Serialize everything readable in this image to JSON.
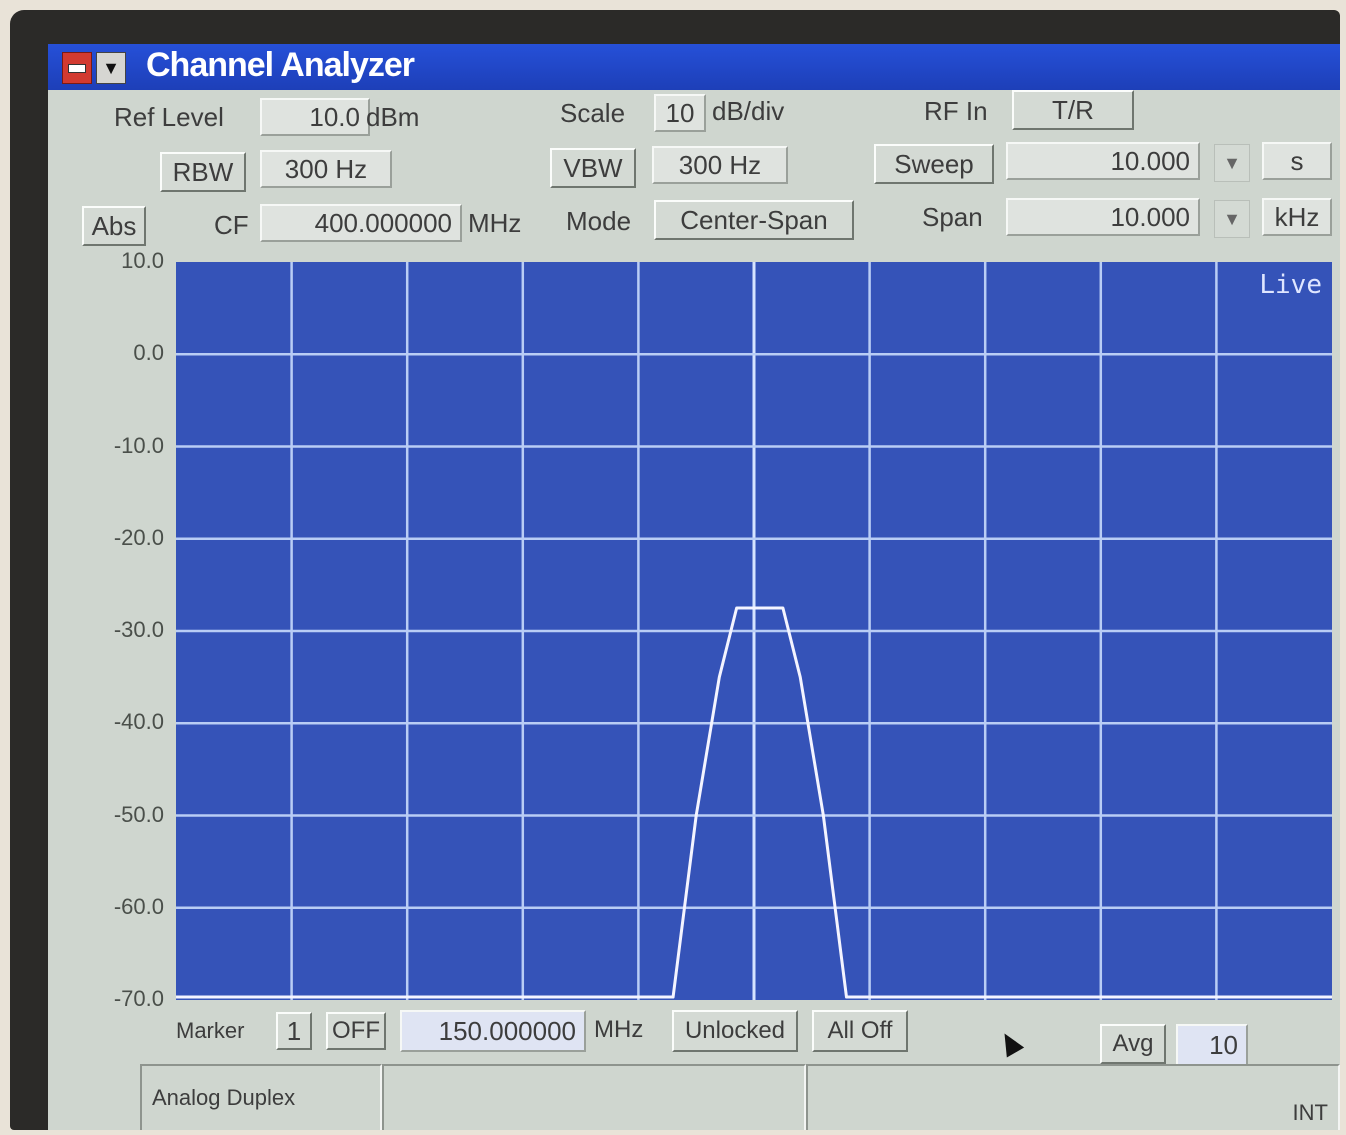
{
  "window": {
    "title": "Channel Analyzer",
    "menu_icon": "▼"
  },
  "row1": {
    "ref_level_label": "Ref Level",
    "ref_level_value": "10.0",
    "ref_level_unit": "dBm",
    "scale_label": "Scale",
    "scale_value": "10",
    "scale_unit": "dB/div",
    "rf_in_label": "RF In",
    "rf_in_value": "T/R"
  },
  "row2": {
    "rbw_label": "RBW",
    "rbw_value": "300 Hz",
    "vbw_label": "VBW",
    "vbw_value": "300 Hz",
    "sweep_label": "Sweep",
    "sweep_value": "10.000",
    "sweep_unit": "s"
  },
  "row3": {
    "abs_label": "Abs",
    "cf_label": "CF",
    "cf_value": "400.000000",
    "cf_unit": "MHz",
    "mode_label": "Mode",
    "mode_value": "Center-Span",
    "span_label": "Span",
    "span_value": "10.000",
    "span_unit": "kHz"
  },
  "plot": {
    "live_label": "Live",
    "y_ticks": [
      "10.0",
      "0.0",
      "-10.0",
      "-20.0",
      "-30.0",
      "-40.0",
      "-50.0",
      "-60.0",
      "-70.0"
    ]
  },
  "chart_data": {
    "type": "line",
    "ylim": [
      -70,
      10
    ],
    "xlim": [
      0,
      10
    ],
    "grid": true,
    "series": [
      {
        "x": [
          0,
          4.3,
          4.5,
          4.7,
          4.85,
          5.25,
          5.4,
          5.6,
          5.8,
          10
        ],
        "values": [
          -70,
          -70,
          -50,
          -35,
          -27.5,
          -27.5,
          -35,
          -50,
          -70,
          -70
        ]
      }
    ]
  },
  "bottom": {
    "marker_label": "Marker",
    "marker_value": "1",
    "marker_state": "OFF",
    "marker_freq": "150.000000",
    "marker_unit": "MHz",
    "unlocked_label": "Unlocked",
    "all_off_label": "All Off",
    "avg_label": "Avg",
    "avg_value": "10"
  },
  "status": {
    "mode": "Analog Duplex",
    "ref": "INT"
  }
}
